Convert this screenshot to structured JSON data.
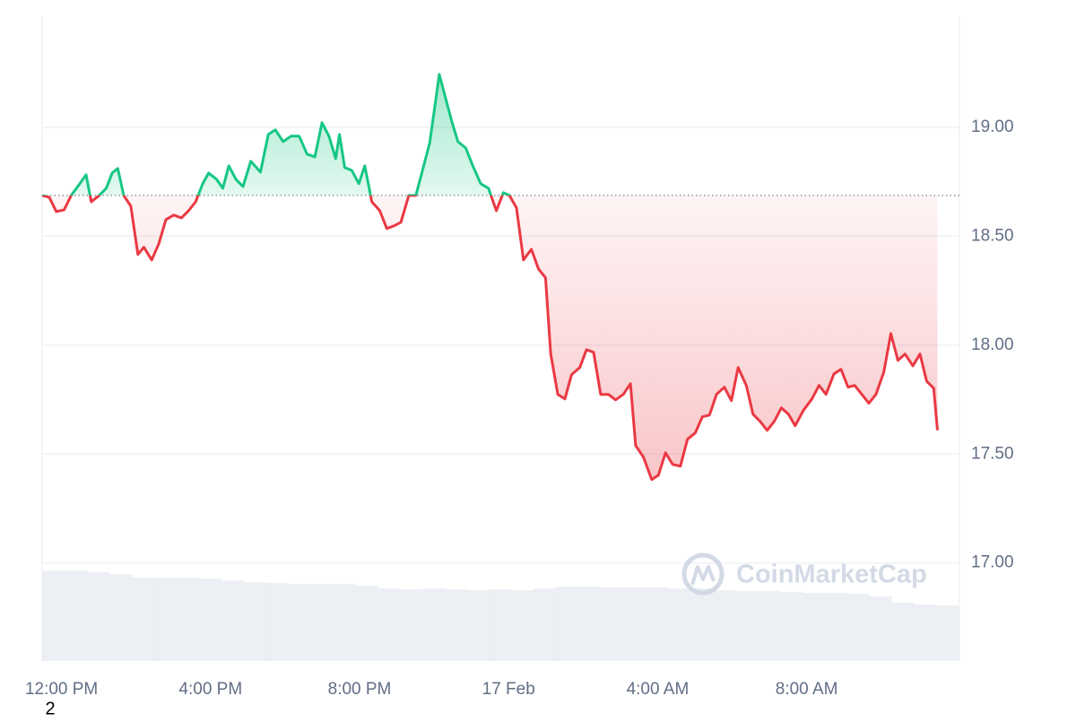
{
  "chart_data": {
    "type": "line",
    "x": [
      -0.52,
      -0.33,
      -0.14,
      0.07,
      0.26,
      0.49,
      0.66,
      0.8,
      1.01,
      1.2,
      1.36,
      1.51,
      1.67,
      1.86,
      2.05,
      2.21,
      2.42,
      2.61,
      2.8,
      3.01,
      3.22,
      3.41,
      3.6,
      3.79,
      3.95,
      4.16,
      4.33,
      4.49,
      4.68,
      4.87,
      5.08,
      5.34,
      5.55,
      5.74,
      5.95,
      6.16,
      6.38,
      6.59,
      6.8,
      6.99,
      7.18,
      7.36,
      7.46,
      7.6,
      7.79,
      7.98,
      8.14,
      8.33,
      8.54,
      8.73,
      8.92,
      9.11,
      9.32,
      9.51,
      9.69,
      9.88,
      10.0,
      10.14,
      10.31,
      10.47,
      10.64,
      10.85,
      11.04,
      11.25,
      11.46,
      11.67,
      11.86,
      12.02,
      12.21,
      12.4,
      12.61,
      12.8,
      12.99,
      13.13,
      13.32,
      13.51,
      13.69,
      13.91,
      14.09,
      14.28,
      14.47,
      14.68,
      14.87,
      15.08,
      15.27,
      15.41,
      15.62,
      15.84,
      16.02,
      16.21,
      16.4,
      16.61,
      16.8,
      17.01,
      17.2,
      17.39,
      17.58,
      17.79,
      17.98,
      18.16,
      18.38,
      18.56,
      18.75,
      18.94,
      19.13,
      19.32,
      19.51,
      19.69,
      19.91,
      20.14,
      20.33,
      20.52,
      20.73,
      20.92,
      21.11,
      21.29,
      21.48,
      21.67,
      21.86,
      22.07,
      22.26,
      22.45,
      22.64,
      22.85,
      23.04,
      23.22,
      23.41,
      23.51
    ],
    "values": [
      18.687,
      18.679,
      18.613,
      18.621,
      18.687,
      18.741,
      18.782,
      18.658,
      18.687,
      18.72,
      18.79,
      18.811,
      18.687,
      18.638,
      18.416,
      18.449,
      18.391,
      18.465,
      18.576,
      18.597,
      18.584,
      18.617,
      18.658,
      18.741,
      18.79,
      18.761,
      18.72,
      18.823,
      18.761,
      18.728,
      18.844,
      18.794,
      18.967,
      18.988,
      18.934,
      18.959,
      18.959,
      18.877,
      18.864,
      19.021,
      18.959,
      18.856,
      18.967,
      18.815,
      18.802,
      18.741,
      18.823,
      18.658,
      18.617,
      18.535,
      18.547,
      18.564,
      18.687,
      18.687,
      18.802,
      18.926,
      19.07,
      19.243,
      19.132,
      19.029,
      18.934,
      18.905,
      18.823,
      18.741,
      18.72,
      18.617,
      18.7,
      18.687,
      18.63,
      18.391,
      18.44,
      18.35,
      18.309,
      17.959,
      17.774,
      17.753,
      17.864,
      17.897,
      17.979,
      17.967,
      17.774,
      17.774,
      17.749,
      17.774,
      17.823,
      17.539,
      17.486,
      17.383,
      17.403,
      17.506,
      17.453,
      17.444,
      17.568,
      17.597,
      17.671,
      17.679,
      17.774,
      17.807,
      17.745,
      17.897,
      17.815,
      17.683,
      17.65,
      17.609,
      17.65,
      17.712,
      17.683,
      17.63,
      17.7,
      17.753,
      17.815,
      17.774,
      17.868,
      17.889,
      17.807,
      17.815,
      17.774,
      17.733,
      17.774,
      17.877,
      18.053,
      17.93,
      17.959,
      17.905,
      17.959,
      17.835,
      17.802,
      17.609
    ],
    "baseline": 18.687,
    "up_color": "#16c784",
    "down_color": "#ea3943",
    "xlim": [
      -0.52,
      24.1
    ],
    "xticks": [
      {
        "value": 0,
        "label": "12:00 PM"
      },
      {
        "value": 4,
        "label": "4:00 PM"
      },
      {
        "value": 8,
        "label": "8:00 PM"
      },
      {
        "value": 12,
        "label": "17 Feb"
      },
      {
        "value": 16,
        "label": "4:00 AM"
      },
      {
        "value": 20,
        "label": "8:00 AM"
      }
    ],
    "ylim": [
      16.55,
      19.51
    ],
    "yticks": [
      {
        "value": 17,
        "label": "17.00"
      },
      {
        "value": 17.5,
        "label": "17.50"
      },
      {
        "value": 18,
        "label": "18.00"
      },
      {
        "value": 18.5,
        "label": "18.50"
      },
      {
        "value": 19,
        "label": "19.00"
      }
    ],
    "grid": true,
    "volume": {
      "color": "#eceff3",
      "y2lim": [
        0,
        720
      ],
      "x": [
        -0.22,
        0.38,
        0.98,
        1.58,
        2.18,
        2.78,
        3.38,
        3.98,
        4.58,
        5.18,
        5.78,
        6.38,
        6.98,
        7.58,
        8.18,
        8.78,
        9.38,
        9.98,
        10.58,
        11.18,
        11.78,
        12.38,
        12.98,
        13.58,
        14.18,
        14.78,
        15.38,
        15.98,
        16.58,
        17.18,
        17.78,
        18.38,
        18.98,
        19.58,
        20.18,
        20.78,
        21.38,
        21.98,
        22.58,
        23.18,
        23.78
      ],
      "values": [
        101,
        101,
        99,
        97,
        93,
        93,
        93,
        92,
        90,
        88,
        87,
        86,
        86,
        86,
        84,
        81,
        80,
        81,
        80,
        79,
        80,
        79,
        81,
        83,
        83,
        82,
        82,
        82,
        81,
        81,
        79,
        78,
        78,
        77,
        76,
        76,
        75,
        72,
        65,
        63,
        62
      ]
    },
    "watermark": "CoinMarketCap"
  },
  "corner_text": "2"
}
